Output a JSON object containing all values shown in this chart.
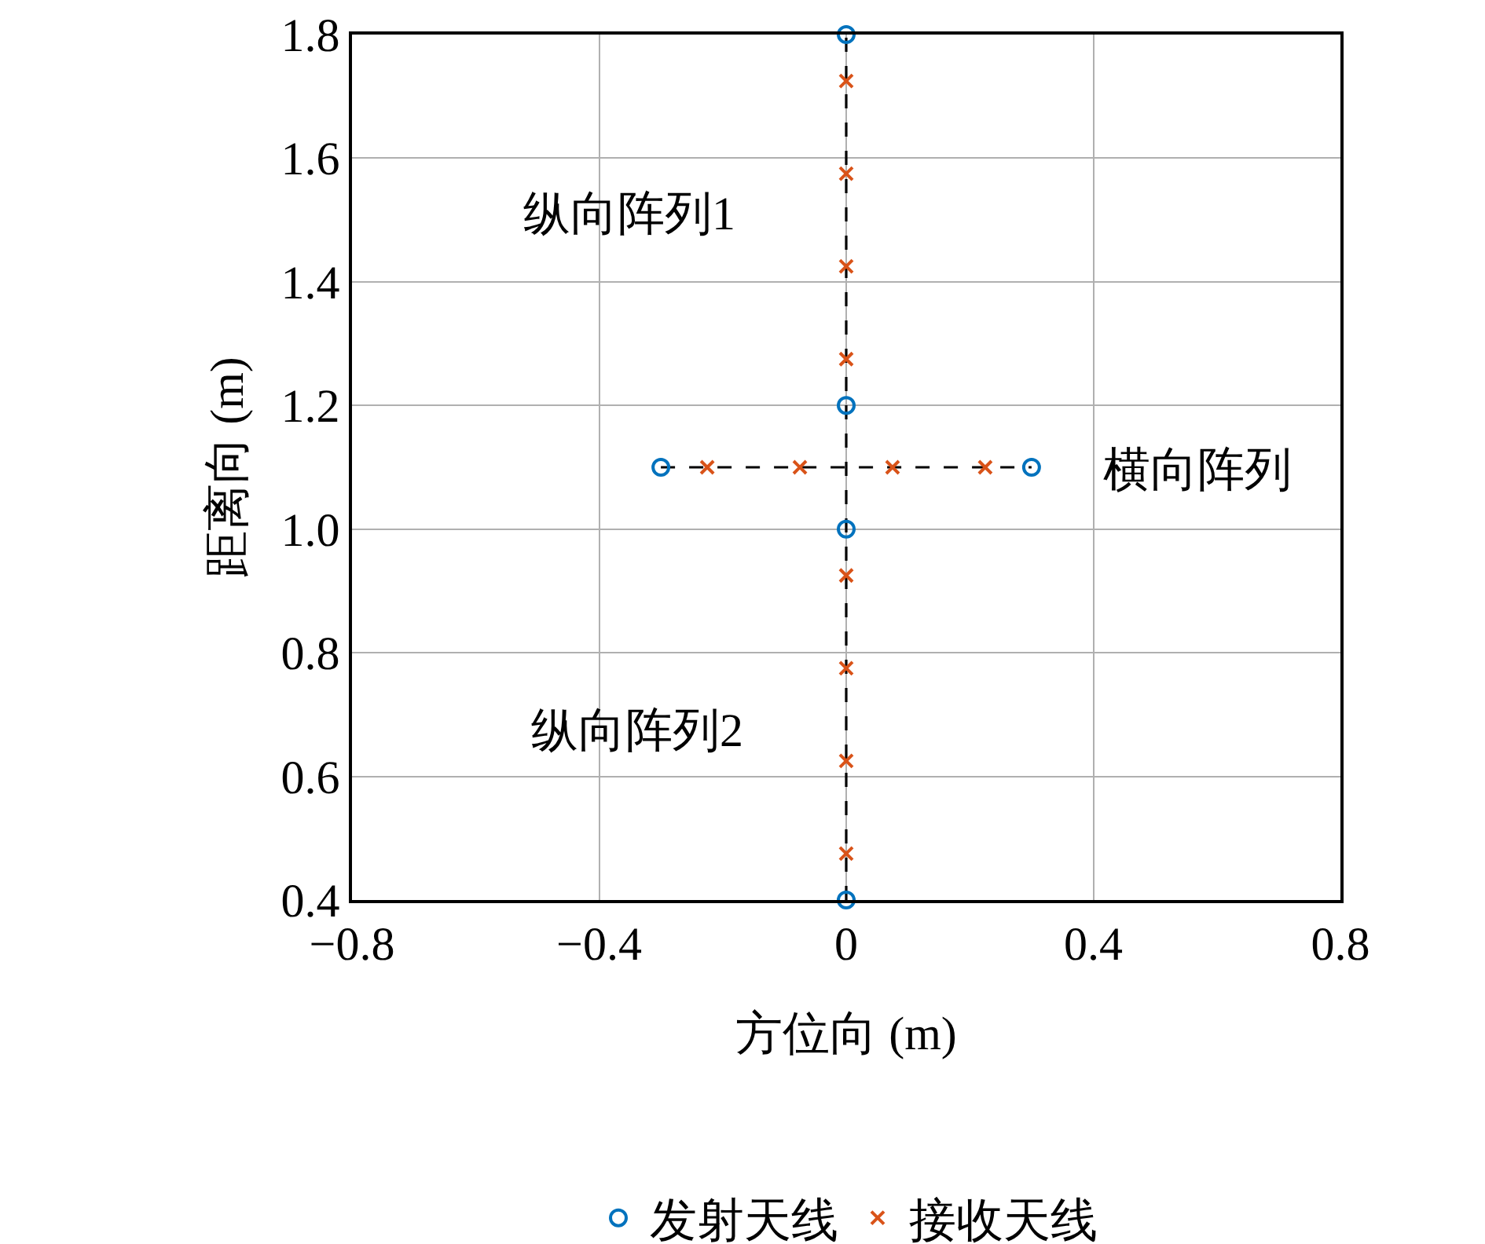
{
  "chart_data": {
    "type": "scatter",
    "xlabel": "方位向 (m)",
    "ylabel": "距离向 (m)",
    "xlim": [
      -0.8,
      0.8
    ],
    "ylim": [
      0.4,
      1.8
    ],
    "xticks": [
      {
        "value": -0.8,
        "label": "−0.8"
      },
      {
        "value": -0.4,
        "label": "−0.4"
      },
      0,
      0.4,
      0.8
    ],
    "yticks": [
      0.4,
      0.6,
      0.8,
      {
        "value": 1.0,
        "label": "1.0"
      },
      1.2,
      1.4,
      1.6,
      1.8
    ],
    "grid": true,
    "legend": "bottom",
    "series": [
      {
        "type": "line",
        "color": "#000000",
        "line_style": "dashed",
        "marker": "none",
        "x": [
          0,
          0
        ],
        "values": [
          0.4,
          1.8
        ]
      },
      {
        "type": "line",
        "color": "#000000",
        "line_style": "dashed",
        "marker": "none",
        "x": [
          -0.3,
          0.3
        ],
        "values": [
          1.1,
          1.1
        ]
      },
      {
        "name": "发射天线",
        "color": "#0072bd",
        "marker": "circle",
        "x": [
          0,
          0,
          0,
          0,
          -0.3,
          0.3
        ],
        "values": [
          1.8,
          1.2,
          1.0,
          0.4,
          1.1,
          1.1
        ]
      },
      {
        "name": "接收天线",
        "color": "#d95319",
        "marker": "cross",
        "x": [
          0,
          0,
          0,
          0,
          0,
          0,
          0,
          0,
          -0.225,
          -0.075,
          0.075,
          0.225
        ],
        "values": [
          1.725,
          1.575,
          1.425,
          1.275,
          0.925,
          0.775,
          0.625,
          0.475,
          1.1,
          1.1,
          1.1,
          1.1
        ]
      }
    ],
    "annotations": [
      "纵向阵列1",
      "纵向阵列2",
      "横向阵列"
    ]
  }
}
